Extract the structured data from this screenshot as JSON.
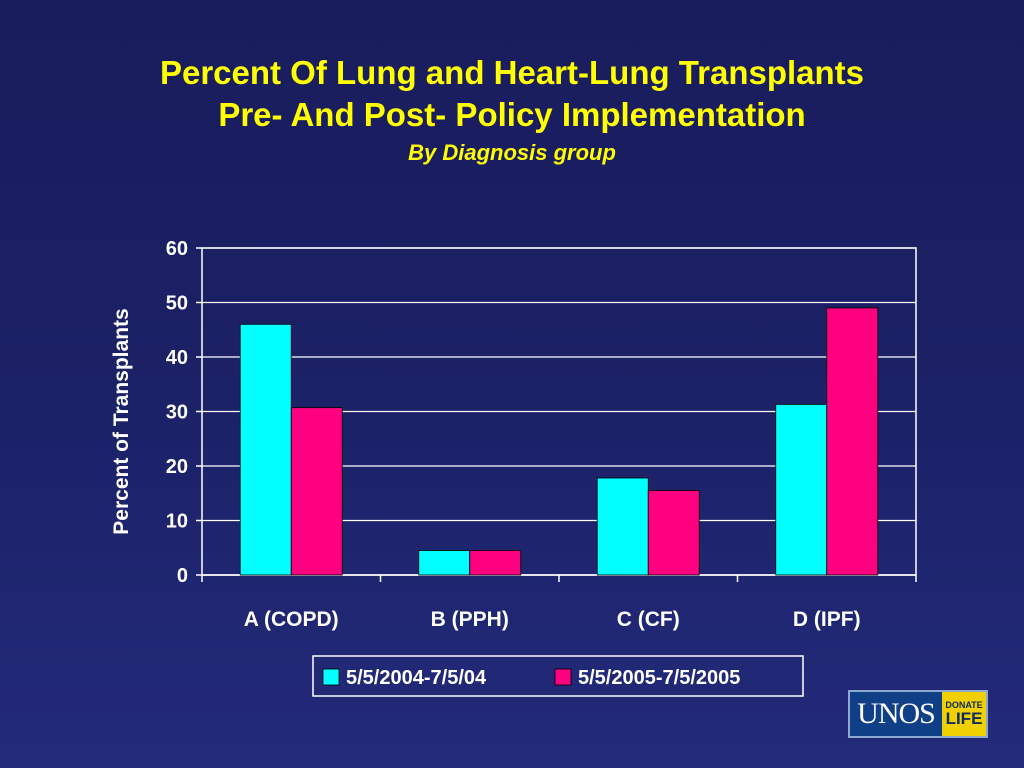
{
  "slide": {
    "title_line1": "Percent Of Lung and Heart-Lung Transplants",
    "title_line2": "Pre- And Post- Policy Implementation",
    "subtitle": "By Diagnosis group"
  },
  "logo": {
    "main": "UNOS",
    "side_top": "DONATE",
    "side_bottom": "LIFE"
  },
  "chart_data": {
    "type": "bar",
    "title": "Percent Of Lung and Heart-Lung Transplants Pre- And Post- Policy Implementation",
    "subtitle": "By Diagnosis group",
    "xlabel": "",
    "ylabel": "Percent of Transplants",
    "ylim": [
      0,
      60
    ],
    "yticks": [
      0,
      10,
      20,
      30,
      40,
      50,
      60
    ],
    "grid": true,
    "legend_position": "bottom",
    "categories": [
      "A (COPD)",
      "B (PPH)",
      "C (CF)",
      "D (IPF)"
    ],
    "series": [
      {
        "name": "5/5/2004-7/5/04",
        "color": "#00ffff",
        "values": [
          46,
          4.5,
          17.8,
          31.3
        ]
      },
      {
        "name": "5/5/2005-7/5/2005",
        "color": "#ff0080",
        "values": [
          30.7,
          4.5,
          15.5,
          49
        ]
      }
    ]
  }
}
